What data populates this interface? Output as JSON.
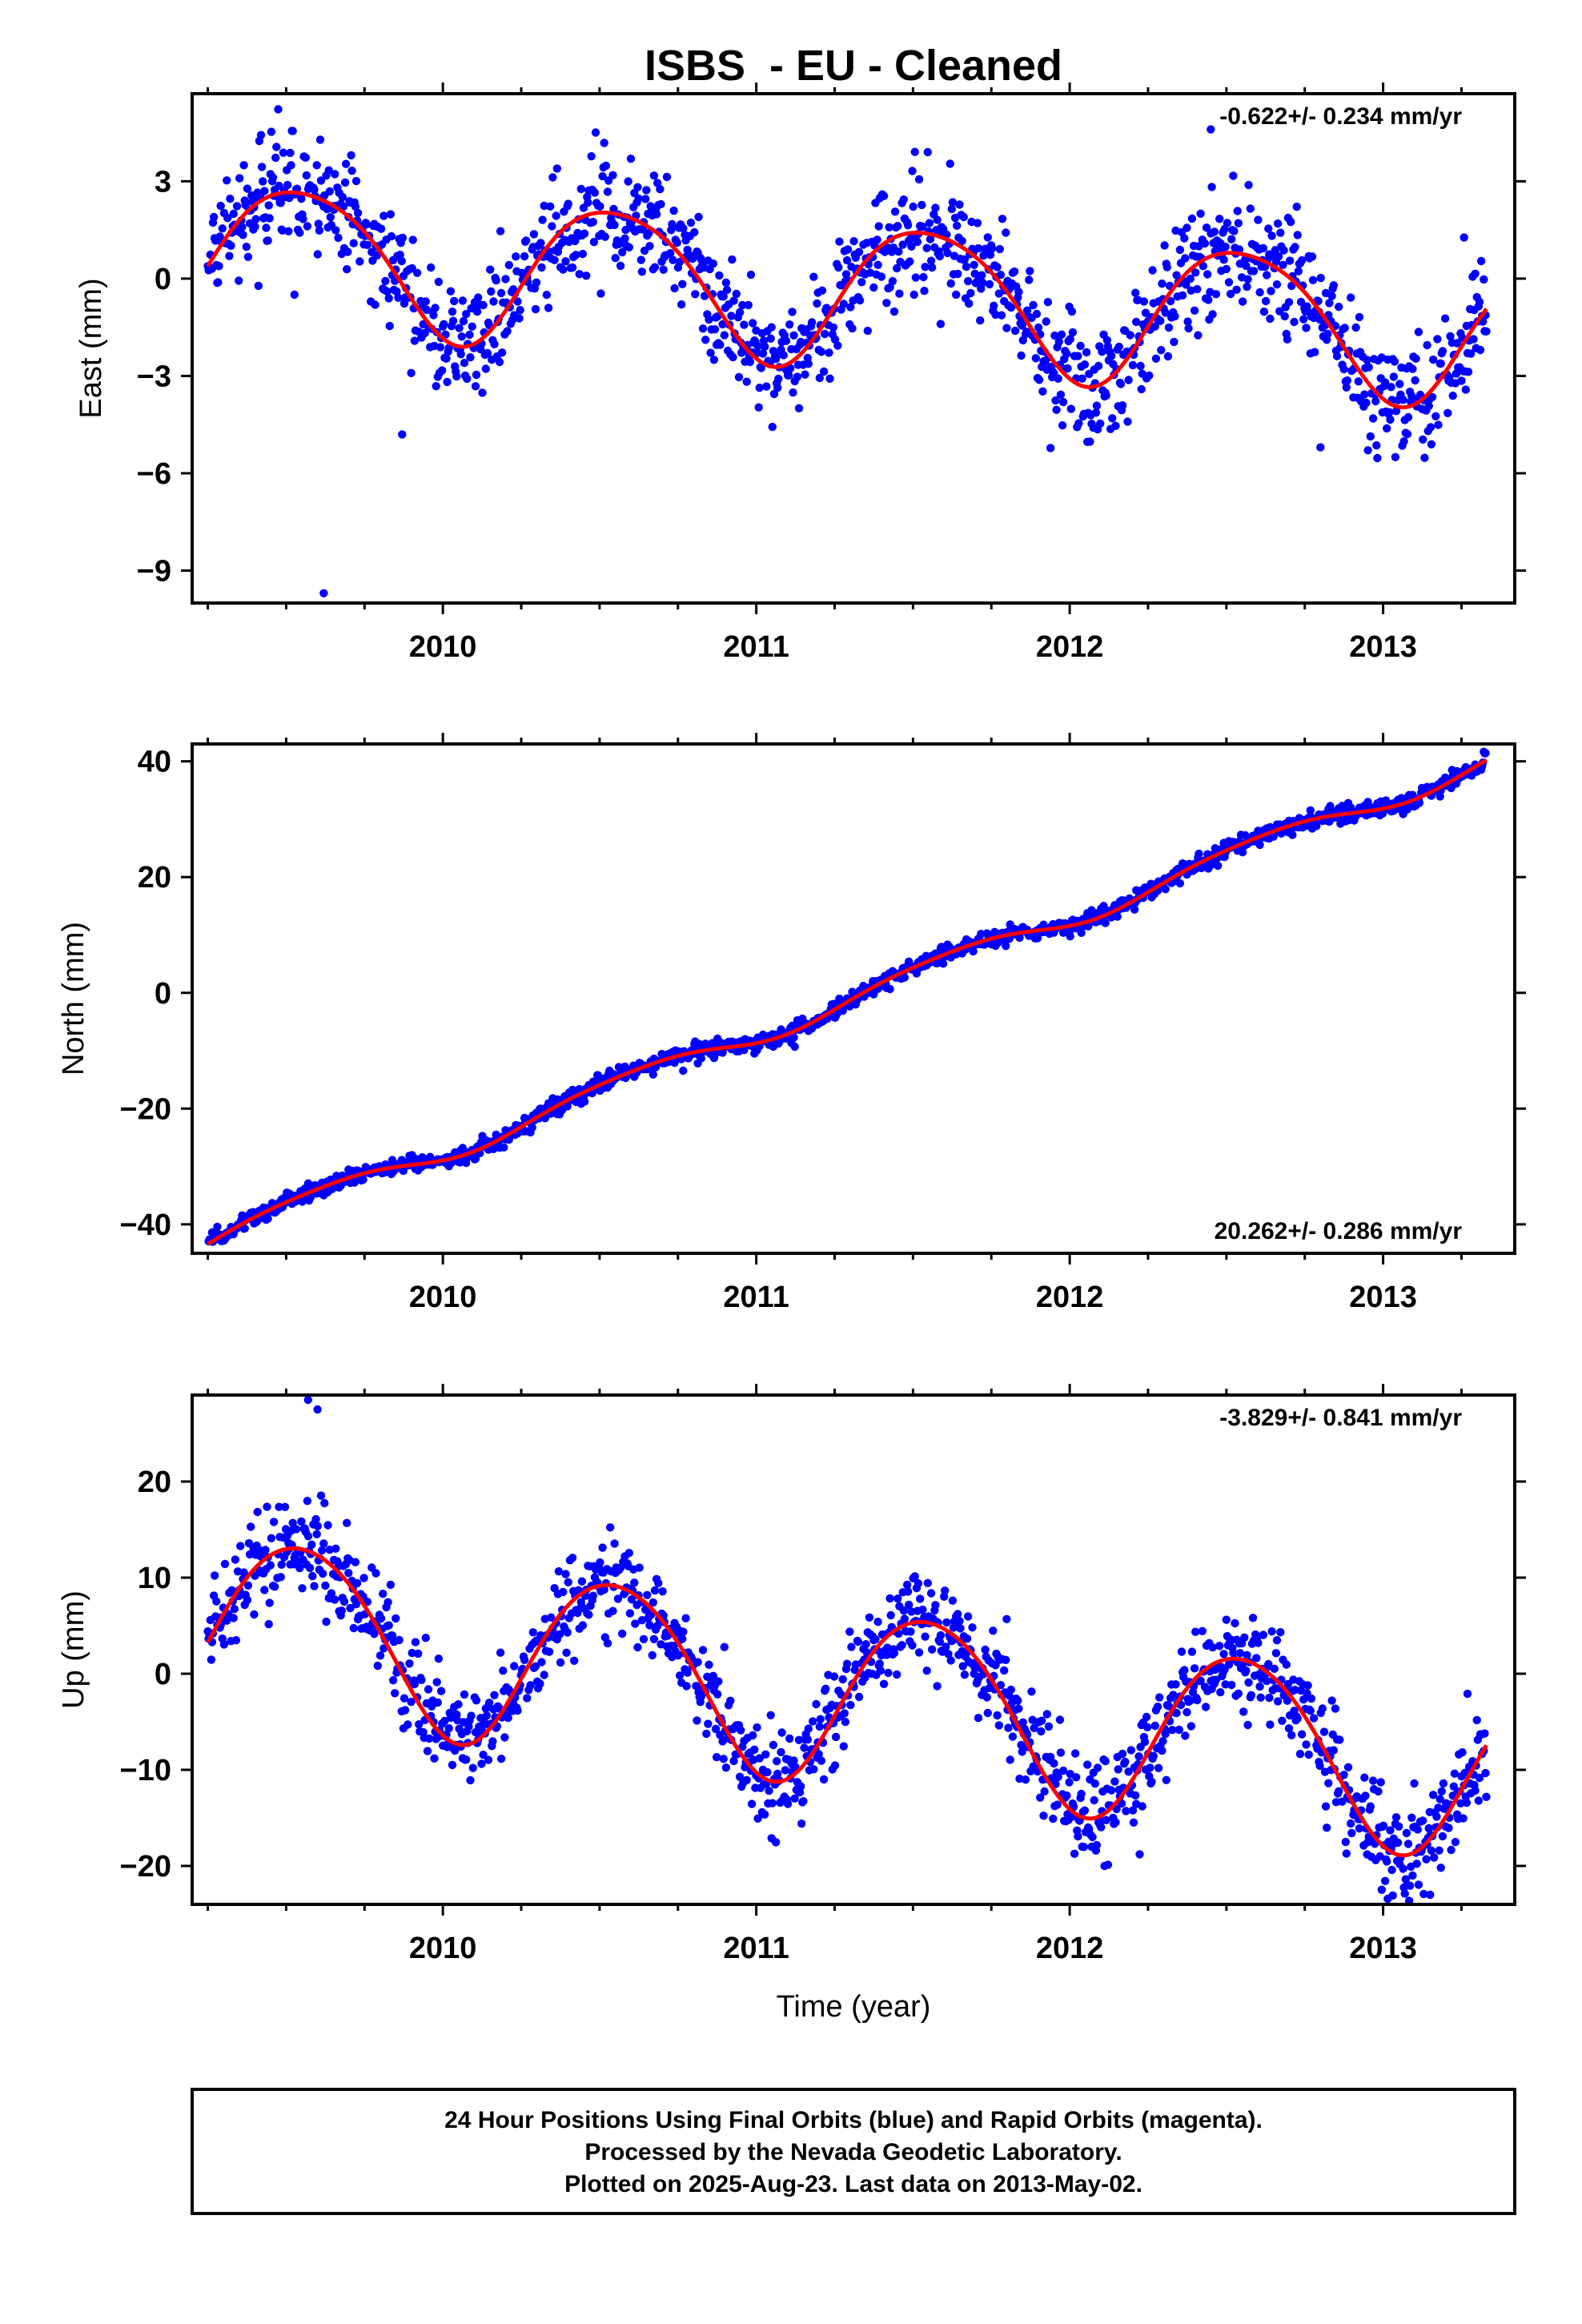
{
  "figure": {
    "title": "ISBS  - EU - Cleaned",
    "footer": [
      "24 Hour Positions Using Final Orbits (blue) and Rapid Orbits (magenta).",
      "Processed by the Nevada Geodetic Laboratory.",
      "Plotted on 2025-Aug-23. Last data on 2013-May-02."
    ],
    "colors": {
      "points": "#0000ff",
      "model": "#ff0000",
      "frame": "#000000"
    }
  },
  "chart_data": [
    {
      "type": "scatter",
      "ylabel": "East (mm)",
      "xlabel": "",
      "rate_label": "-0.622+/- 0.234 mm/yr",
      "rate_placement": "top-right",
      "xlim": [
        2009.2,
        2013.42
      ],
      "ylim": [
        -10,
        5.7
      ],
      "xticks": [
        2010,
        2011,
        2012,
        2013
      ],
      "xtick_labels": [
        "2010",
        "2011",
        "2012",
        "2013"
      ],
      "yticks": [
        -9,
        -6,
        -3,
        0,
        3
      ],
      "ytick_labels": [
        "−9",
        "−6",
        "−3",
        "0",
        "3"
      ],
      "data_range": [
        2009.25,
        2013.33
      ],
      "model": {
        "trend": -0.622,
        "offset": -0.35,
        "annual_amp": 2.2,
        "annual_phase": 2009.3,
        "semi_amp": 0.3,
        "semi_phase": 2009.2,
        "noise": 0.9
      },
      "outliers": [
        [
          2009.62,
          -9.7
        ],
        [
          2012.45,
          4.6
        ],
        [
          2009.87,
          -4.8
        ],
        [
          2012.8,
          -5.2
        ]
      ]
    },
    {
      "type": "scatter",
      "ylabel": "North (mm)",
      "xlabel": "",
      "rate_label": "20.262+/- 0.286 mm/yr",
      "rate_placement": "bottom-right",
      "xlim": [
        2009.2,
        2013.42
      ],
      "ylim": [
        -45,
        43
      ],
      "xticks": [
        2010,
        2011,
        2012,
        2013
      ],
      "xtick_labels": [
        "2010",
        "2011",
        "2012",
        "2013"
      ],
      "yticks": [
        -40,
        -20,
        0,
        20,
        40
      ],
      "ytick_labels": [
        "−40",
        "−20",
        "0",
        "20",
        "40"
      ],
      "data_range": [
        2009.25,
        2013.33
      ],
      "model": {
        "trend": 20.262,
        "offset": -2.0,
        "annual_amp": 1.8,
        "annual_phase": 2009.35,
        "semi_amp": 0.3,
        "semi_phase": 2009.2,
        "noise": 0.7
      },
      "outliers": []
    },
    {
      "type": "scatter",
      "ylabel": "Up (mm)",
      "xlabel": "Time (year)",
      "rate_label": "-3.829+/- 0.841 mm/yr",
      "rate_placement": "top-right",
      "xlim": [
        2009.2,
        2013.42
      ],
      "ylim": [
        -24,
        29
      ],
      "xticks": [
        2010,
        2011,
        2012,
        2013
      ],
      "xtick_labels": [
        "2010",
        "2011",
        "2012",
        "2013"
      ],
      "yticks": [
        -20,
        -10,
        0,
        10,
        20
      ],
      "ytick_labels": [
        "−20",
        "−10",
        "0",
        "10",
        "20"
      ],
      "data_range": [
        2009.25,
        2013.33
      ],
      "model": {
        "trend": -3.829,
        "offset": -2.0,
        "annual_amp": 9.2,
        "annual_phase": 2009.3,
        "semi_amp": 0.8,
        "semi_phase": 2009.2,
        "noise": 2.6
      },
      "outliers": [
        [
          2009.57,
          28.5
        ],
        [
          2009.6,
          27.5
        ],
        [
          2013.15,
          -23
        ]
      ]
    }
  ]
}
